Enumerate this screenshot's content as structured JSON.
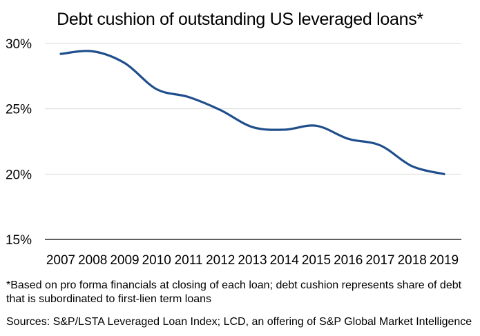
{
  "chart_data": {
    "type": "line",
    "title": "Debt cushion of outstanding US leveraged loans*",
    "xlabel": "",
    "ylabel": "",
    "x": [
      "2007",
      "2008",
      "2009",
      "2010",
      "2011",
      "2012",
      "2013",
      "2014",
      "2015",
      "2016",
      "2017",
      "2018",
      "2019"
    ],
    "series": [
      {
        "name": "Debt cushion",
        "color": "#1f4e8c",
        "values": [
          29.2,
          29.4,
          28.5,
          26.5,
          25.9,
          24.9,
          23.6,
          23.4,
          23.7,
          22.7,
          22.2,
          20.6,
          20.0
        ]
      }
    ],
    "ylim": [
      15,
      30
    ],
    "yticks": [
      15,
      20,
      25,
      30
    ],
    "ytick_labels": [
      "15%",
      "20%",
      "25%",
      "30%"
    ],
    "grid": true,
    "legend": "none"
  },
  "footnote": "*Based on pro forma financials at closing of each loan; debt cushion represents share of debt that is subordinated to first-lien term loans",
  "sources": "Sources: S&P/LSTA Leveraged Loan Index; LCD, an offering of S&P Global Market Intelligence"
}
